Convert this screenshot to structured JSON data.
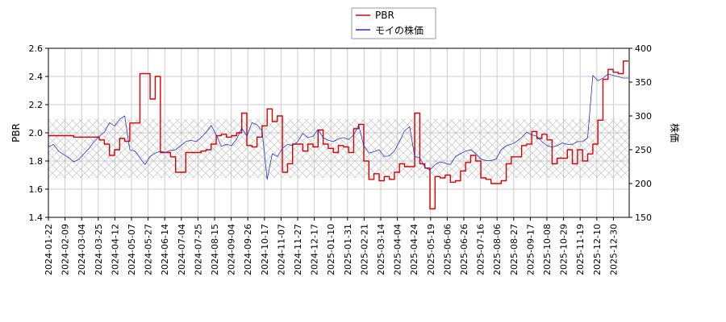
{
  "chart_data": {
    "type": "line",
    "x_dates": [
      "2024-01-22",
      "2024-02-09",
      "2024-03-04",
      "2024-03-25",
      "2024-04-12",
      "2024-05-07",
      "2024-05-27",
      "2024-06-14",
      "2024-07-04",
      "2024-07-25",
      "2024-08-15",
      "2024-09-04",
      "2024-09-26",
      "2024-10-17",
      "2024-11-07",
      "2024-11-27",
      "2024-12-17",
      "2025-01-10",
      "2025-01-31",
      "2025-02-21",
      "2025-03-14",
      "2025-04-04",
      "2025-04-24",
      "2025-05-19",
      "2025-06-06",
      "2025-06-26",
      "2025-07-16",
      "2025-08-06",
      "2025-08-27",
      "2025-09-17",
      "2025-10-08",
      "2025-10-29",
      "2025-11-19",
      "2025-12-10",
      "2025-12-30"
    ],
    "ylabel_left": "PBR",
    "ylabel_right": "株価",
    "ylim_left": [
      1.4,
      2.6
    ],
    "ylim_right": [
      150,
      400
    ],
    "yticks_left": [
      "1.4",
      "1.6",
      "1.8",
      "2.0",
      "2.2",
      "2.4",
      "2.6"
    ],
    "yticks_right": [
      "150",
      "200",
      "250",
      "300",
      "350",
      "400"
    ],
    "grid": true,
    "legend_position": "top-center",
    "hatched_band_left": [
      1.68,
      2.1
    ],
    "series": [
      {
        "name": "PBR",
        "axis": "left",
        "color": "#dd0000",
        "points": [
          [
            0,
            1.98
          ],
          [
            3,
            1.98
          ],
          [
            5,
            1.97
          ],
          [
            8,
            1.97
          ],
          [
            10,
            1.95
          ],
          [
            11,
            1.92
          ],
          [
            12,
            1.84
          ],
          [
            13,
            1.88
          ],
          [
            14,
            1.96
          ],
          [
            15,
            1.94
          ],
          [
            16,
            2.07
          ],
          [
            17,
            2.07
          ],
          [
            18,
            2.42
          ],
          [
            19,
            2.42
          ],
          [
            20,
            2.24
          ],
          [
            21,
            2.4
          ],
          [
            22,
            1.86
          ],
          [
            23,
            1.86
          ],
          [
            24,
            1.83
          ],
          [
            25,
            1.72
          ],
          [
            26,
            1.72
          ],
          [
            27,
            1.86
          ],
          [
            28,
            1.86
          ],
          [
            29,
            1.86
          ],
          [
            30,
            1.87
          ],
          [
            31,
            1.88
          ],
          [
            32,
            1.92
          ],
          [
            33,
            1.98
          ],
          [
            34,
            1.99
          ],
          [
            35,
            1.97
          ],
          [
            36,
            1.98
          ],
          [
            37,
            2.0
          ],
          [
            38,
            2.14
          ],
          [
            39,
            1.91
          ],
          [
            40,
            1.9
          ],
          [
            41,
            1.97
          ],
          [
            42,
            2.05
          ],
          [
            43,
            2.17
          ],
          [
            44,
            2.08
          ],
          [
            45,
            2.12
          ],
          [
            46,
            1.72
          ],
          [
            47,
            1.78
          ],
          [
            48,
            1.92
          ],
          [
            49,
            1.92
          ],
          [
            50,
            1.87
          ],
          [
            51,
            1.92
          ],
          [
            52,
            1.9
          ],
          [
            53,
            2.02
          ],
          [
            54,
            1.92
          ],
          [
            55,
            1.89
          ],
          [
            56,
            1.86
          ],
          [
            57,
            1.91
          ],
          [
            58,
            1.9
          ],
          [
            59,
            1.86
          ],
          [
            60,
            2.03
          ],
          [
            61,
            2.06
          ],
          [
            62,
            1.8
          ],
          [
            63,
            1.67
          ],
          [
            64,
            1.71
          ],
          [
            65,
            1.66
          ],
          [
            66,
            1.69
          ],
          [
            67,
            1.67
          ],
          [
            68,
            1.72
          ],
          [
            69,
            1.78
          ],
          [
            70,
            1.76
          ],
          [
            71,
            1.76
          ],
          [
            72,
            2.14
          ],
          [
            73,
            1.78
          ],
          [
            74,
            1.75
          ],
          [
            75,
            1.46
          ],
          [
            76,
            1.69
          ],
          [
            77,
            1.68
          ],
          [
            78,
            1.7
          ],
          [
            79,
            1.65
          ],
          [
            80,
            1.66
          ],
          [
            81,
            1.73
          ],
          [
            82,
            1.79
          ],
          [
            83,
            1.84
          ],
          [
            84,
            1.8
          ],
          [
            85,
            1.68
          ],
          [
            86,
            1.67
          ],
          [
            87,
            1.64
          ],
          [
            88,
            1.64
          ],
          [
            89,
            1.66
          ],
          [
            90,
            1.78
          ],
          [
            91,
            1.83
          ],
          [
            92,
            1.83
          ],
          [
            93,
            1.91
          ],
          [
            94,
            1.92
          ],
          [
            95,
            2.01
          ],
          [
            96,
            1.96
          ],
          [
            97,
            1.99
          ],
          [
            98,
            1.95
          ],
          [
            99,
            1.78
          ],
          [
            100,
            1.82
          ],
          [
            101,
            1.82
          ],
          [
            102,
            1.88
          ],
          [
            103,
            1.78
          ],
          [
            104,
            1.88
          ],
          [
            105,
            1.8
          ],
          [
            106,
            1.85
          ],
          [
            107,
            1.92
          ],
          [
            108,
            2.09
          ],
          [
            109,
            2.38
          ],
          [
            110,
            2.45
          ],
          [
            111,
            2.43
          ],
          [
            112,
            2.42
          ],
          [
            113,
            2.51
          ],
          [
            114,
            2.51
          ]
        ]
      },
      {
        "name": "モイの株価",
        "axis": "right",
        "color": "#2233cc",
        "points": [
          [
            0,
            254
          ],
          [
            1,
            258
          ],
          [
            2,
            248
          ],
          [
            3,
            243
          ],
          [
            4,
            238
          ],
          [
            5,
            232
          ],
          [
            6,
            236
          ],
          [
            7,
            244
          ],
          [
            8,
            252
          ],
          [
            9,
            262
          ],
          [
            10,
            270
          ],
          [
            11,
            276
          ],
          [
            12,
            290
          ],
          [
            13,
            285
          ],
          [
            14,
            295
          ],
          [
            15,
            300
          ],
          [
            16,
            250
          ],
          [
            17,
            248
          ],
          [
            18,
            238
          ],
          [
            19,
            228
          ],
          [
            20,
            240
          ],
          [
            21,
            245
          ],
          [
            22,
            248
          ],
          [
            23,
            246
          ],
          [
            24,
            249
          ],
          [
            25,
            250
          ],
          [
            26,
            256
          ],
          [
            27,
            262
          ],
          [
            28,
            264
          ],
          [
            29,
            262
          ],
          [
            30,
            268
          ],
          [
            31,
            276
          ],
          [
            32,
            286
          ],
          [
            33,
            272
          ],
          [
            34,
            255
          ],
          [
            35,
            258
          ],
          [
            36,
            256
          ],
          [
            37,
            266
          ],
          [
            38,
            282
          ],
          [
            39,
            270
          ],
          [
            40,
            290
          ],
          [
            41,
            287
          ],
          [
            42,
            278
          ],
          [
            43,
            206
          ],
          [
            44,
            244
          ],
          [
            45,
            240
          ],
          [
            46,
            252
          ],
          [
            47,
            258
          ],
          [
            48,
            256
          ],
          [
            49,
            262
          ],
          [
            50,
            274
          ],
          [
            51,
            268
          ],
          [
            52,
            270
          ],
          [
            53,
            280
          ],
          [
            54,
            268
          ],
          [
            55,
            264
          ],
          [
            56,
            262
          ],
          [
            57,
            266
          ],
          [
            58,
            268
          ],
          [
            59,
            265
          ],
          [
            60,
            272
          ],
          [
            61,
            286
          ],
          [
            62,
            256
          ],
          [
            63,
            245
          ],
          [
            64,
            247
          ],
          [
            65,
            250
          ],
          [
            66,
            240
          ],
          [
            67,
            241
          ],
          [
            68,
            248
          ],
          [
            69,
            262
          ],
          [
            70,
            278
          ],
          [
            71,
            284
          ],
          [
            72,
            240
          ],
          [
            73,
            238
          ],
          [
            74,
            224
          ],
          [
            75,
            220
          ],
          [
            76,
            228
          ],
          [
            77,
            232
          ],
          [
            78,
            230
          ],
          [
            79,
            228
          ],
          [
            80,
            240
          ],
          [
            81,
            244
          ],
          [
            82,
            248
          ],
          [
            83,
            250
          ],
          [
            84,
            244
          ],
          [
            85,
            236
          ],
          [
            86,
            234
          ],
          [
            87,
            234
          ],
          [
            88,
            236
          ],
          [
            89,
            250
          ],
          [
            90,
            256
          ],
          [
            91,
            258
          ],
          [
            92,
            262
          ],
          [
            93,
            268
          ],
          [
            94,
            276
          ],
          [
            95,
            272
          ],
          [
            96,
            270
          ],
          [
            97,
            262
          ],
          [
            98,
            256
          ],
          [
            99,
            254
          ],
          [
            100,
            256
          ],
          [
            101,
            260
          ],
          [
            102,
            258
          ],
          [
            103,
            258
          ],
          [
            104,
            262
          ],
          [
            105,
            262
          ],
          [
            106,
            268
          ],
          [
            107,
            360
          ],
          [
            108,
            352
          ],
          [
            109,
            356
          ],
          [
            110,
            362
          ],
          [
            111,
            360
          ],
          [
            112,
            358
          ],
          [
            113,
            356
          ],
          [
            114,
            356
          ]
        ]
      }
    ]
  }
}
